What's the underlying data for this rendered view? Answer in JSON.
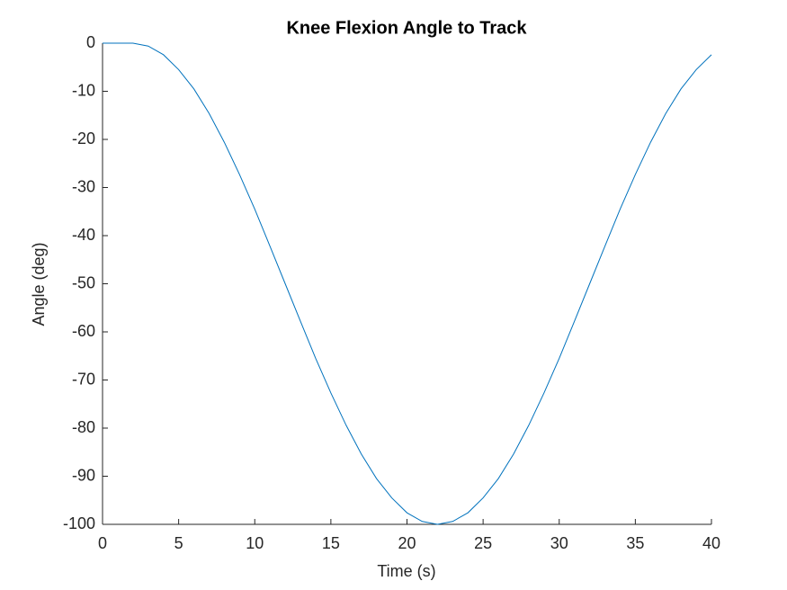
{
  "chart_data": {
    "type": "line",
    "title": "Knee Flexion Angle to Track",
    "x_label": "Time (s)",
    "y_label": "Angle (deg)",
    "x": [
      0,
      1,
      2,
      3,
      4,
      5,
      6,
      7,
      8,
      9,
      10,
      11,
      12,
      13,
      14,
      15,
      16,
      17,
      18,
      19,
      20,
      21,
      22,
      23,
      24,
      25,
      26,
      27,
      28,
      29,
      30,
      31,
      32,
      33,
      34,
      35,
      36,
      37,
      38,
      39,
      40
    ],
    "series": [
      {
        "color": "#0072bd",
        "values": [
          0,
          0,
          0,
          -0.6,
          -2.4,
          -5.5,
          -9.5,
          -14.6,
          -20.6,
          -27.3,
          -34.5,
          -42.2,
          -50,
          -57.8,
          -65.5,
          -72.7,
          -79.4,
          -85.4,
          -90.5,
          -94.5,
          -97.6,
          -99.4,
          -100,
          -99.4,
          -97.6,
          -94.5,
          -90.5,
          -85.4,
          -79.4,
          -72.7,
          -65.5,
          -57.8,
          -50,
          -42.2,
          -34.5,
          -27.3,
          -20.6,
          -14.6,
          -9.5,
          -5.5,
          -2.4
        ]
      }
    ],
    "xlim": [
      0,
      40
    ],
    "xticks": [
      0,
      5,
      10,
      15,
      20,
      25,
      30,
      35,
      40
    ],
    "ylim": [
      -100,
      0
    ],
    "yticks": [
      0,
      -10,
      -20,
      -30,
      -40,
      -50,
      -60,
      -70,
      -80,
      -90,
      -100
    ],
    "grid": false
  }
}
